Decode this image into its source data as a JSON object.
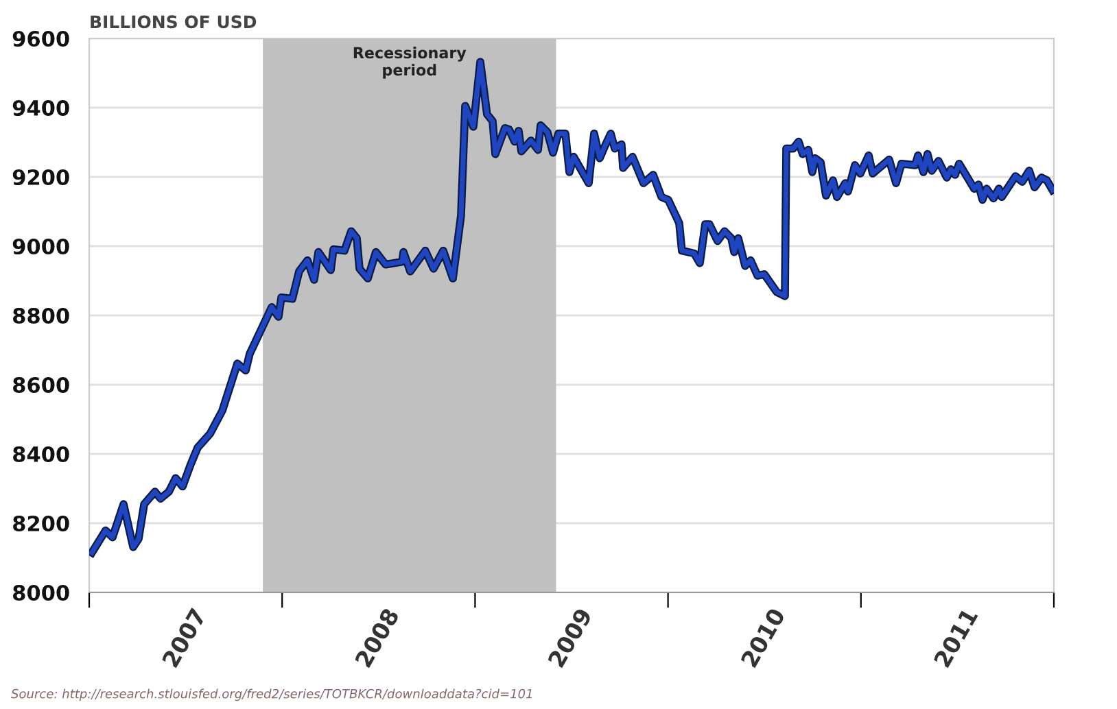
{
  "chart_data": {
    "type": "line",
    "ylabel": "BILLIONS OF USD",
    "annotations": [
      "Source: http://research.stlouisfed.org/fred2/series/TOTBKCR/downloaddata?cid=101"
    ],
    "xlim": [
      2007,
      2012
    ],
    "ylim": [
      8000,
      9600
    ],
    "xticks": [
      {
        "value": 2007,
        "label": null
      },
      {
        "value": 2007.5,
        "label": "2007"
      },
      {
        "value": 2008,
        "label": null
      },
      {
        "value": 2008.5,
        "label": "2008"
      },
      {
        "value": 2009,
        "label": null
      },
      {
        "value": 2009.5,
        "label": "2009"
      },
      {
        "value": 2010,
        "label": null
      },
      {
        "value": 2010.5,
        "label": "2010"
      },
      {
        "value": 2011,
        "label": null
      },
      {
        "value": 2011.5,
        "label": "2011"
      },
      {
        "value": 2012,
        "label": null
      }
    ],
    "yticks": [
      8000,
      8200,
      8400,
      8600,
      8800,
      9000,
      9200,
      9400,
      9600
    ],
    "grid": "y",
    "marker": "none",
    "line_style": "solid",
    "bands": [
      {
        "axis": "x",
        "from": 2007.9,
        "to": 2009.42,
        "label": "Recessionary\nperiod",
        "color": "#c0c0c0"
      }
    ],
    "series": [
      {
        "color": "#1f45c0",
        "x": [
          2007.014,
          2007.085,
          2007.121,
          2007.178,
          2007.228,
          2007.256,
          2007.285,
          2007.341,
          2007.37,
          2007.413,
          2007.448,
          2007.484,
          2007.526,
          2007.562,
          2007.626,
          2007.69,
          2007.768,
          2007.811,
          2007.832,
          2007.946,
          2007.981,
          2007.996,
          2008.053,
          2008.088,
          2008.131,
          2008.166,
          2008.188,
          2008.252,
          2008.266,
          2008.323,
          2008.358,
          2008.387,
          2008.401,
          2008.444,
          2008.486,
          2008.536,
          2008.622,
          2008.629,
          2008.664,
          2008.742,
          2008.785,
          2008.835,
          2008.885,
          2008.927,
          2008.949,
          2008.991,
          2009.027,
          2009.062,
          2009.091,
          2009.105,
          2009.155,
          2009.176,
          2009.205,
          2009.226,
          2009.24,
          2009.29,
          2009.326,
          2009.34,
          2009.375,
          2009.404,
          2009.432,
          2009.468,
          2009.489,
          2009.511,
          2009.589,
          2009.617,
          2009.646,
          2009.674,
          2009.703,
          2009.724,
          2009.759,
          2009.767,
          2009.816,
          2009.873,
          2009.923,
          2009.966,
          2010.001,
          2010.058,
          2010.072,
          2010.136,
          2010.165,
          2010.193,
          2010.215,
          2010.257,
          2010.293,
          2010.328,
          2010.343,
          2010.364,
          2010.4,
          2010.428,
          2010.464,
          2010.499,
          2010.563,
          2010.606,
          2010.613,
          2010.649,
          2010.677,
          2010.698,
          2010.727,
          2010.748,
          2010.762,
          2010.791,
          2010.819,
          2010.855,
          2010.876,
          2010.919,
          2010.933,
          2010.969,
          2010.997,
          2011.04,
          2011.061,
          2011.146,
          2011.182,
          2011.21,
          2011.281,
          2011.296,
          2011.324,
          2011.345,
          2011.367,
          2011.402,
          2011.445,
          2011.466,
          2011.488,
          2011.509,
          2011.587,
          2011.609,
          2011.63,
          2011.651,
          2011.687,
          2011.715,
          2011.73,
          2011.801,
          2011.836,
          2011.872,
          2011.9,
          2011.936,
          2011.964,
          2011.993
        ],
        "values": [
          8115,
          8179,
          8159,
          8255,
          8131,
          8155,
          8255,
          8291,
          8271,
          8291,
          8330,
          8306,
          8370,
          8418,
          8458,
          8525,
          8661,
          8641,
          8689,
          8824,
          8796,
          8852,
          8848,
          8927,
          8959,
          8903,
          8983,
          8931,
          8991,
          8987,
          9043,
          9023,
          8935,
          8907,
          8983,
          8947,
          8955,
          8983,
          8927,
          8987,
          8935,
          8987,
          8907,
          9087,
          9405,
          9345,
          9532,
          9381,
          9361,
          9266,
          9341,
          9337,
          9302,
          9333,
          9274,
          9305,
          9278,
          9349,
          9329,
          9270,
          9325,
          9325,
          9214,
          9258,
          9182,
          9325,
          9254,
          9290,
          9325,
          9282,
          9294,
          9226,
          9258,
          9182,
          9206,
          9142,
          9134,
          9067,
          8987,
          8979,
          8951,
          9063,
          9063,
          9015,
          9043,
          9023,
          8983,
          9023,
          8943,
          8959,
          8915,
          8919,
          8868,
          8856,
          9282,
          9282,
          9302,
          9266,
          9278,
          9214,
          9254,
          9242,
          9146,
          9190,
          9142,
          9182,
          9158,
          9234,
          9210,
          9262,
          9210,
          9250,
          9182,
          9238,
          9234,
          9262,
          9214,
          9266,
          9218,
          9246,
          9198,
          9222,
          9206,
          9238,
          9166,
          9178,
          9134,
          9166,
          9138,
          9166,
          9142,
          9202,
          9186,
          9218,
          9170,
          9198,
          9190,
          9162
        ]
      }
    ]
  }
}
